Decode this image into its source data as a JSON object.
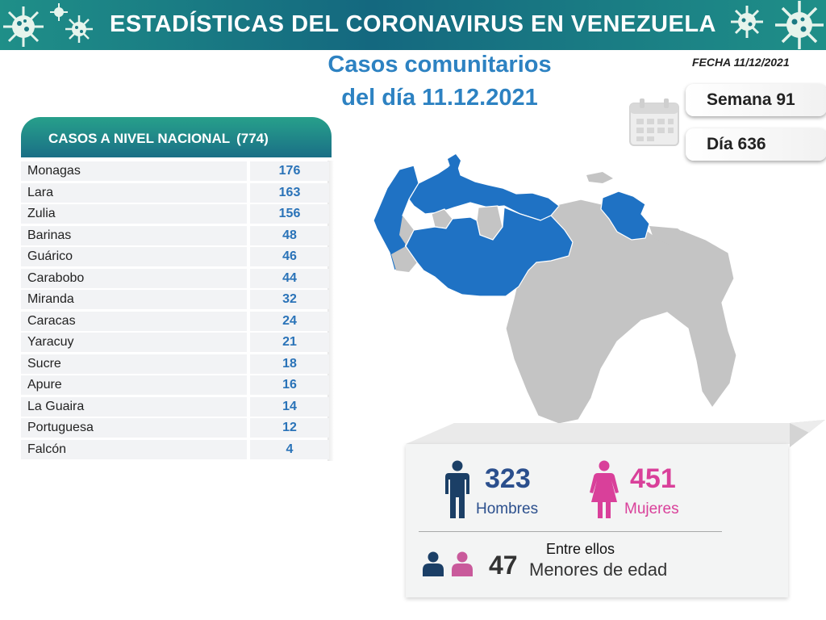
{
  "header": {
    "title": "ESTADÍSTICAS DEL CORONAVIRUS EN VENEZUELA"
  },
  "subtitle": {
    "line1": "Casos comunitarios",
    "line2": "del día 11.12.2021"
  },
  "fecha": "FECHA 11/12/2021",
  "semana": "Semana 91",
  "dia": "Día 636",
  "table": {
    "title": "CASOS A NIVEL NACIONAL",
    "total": "(774)",
    "rows": [
      {
        "name": "Monagas",
        "value": "176"
      },
      {
        "name": "Lara",
        "value": "163"
      },
      {
        "name": "Zulia",
        "value": "156"
      },
      {
        "name": "Barinas",
        "value": "48"
      },
      {
        "name": "Guárico",
        "value": "46"
      },
      {
        "name": "Carabobo",
        "value": "44"
      },
      {
        "name": "Miranda",
        "value": "32"
      },
      {
        "name": "Caracas",
        "value": "24"
      },
      {
        "name": "Yaracuy",
        "value": "21"
      },
      {
        "name": "Sucre",
        "value": "18"
      },
      {
        "name": "Apure",
        "value": "16"
      },
      {
        "name": "La Guaira",
        "value": "14"
      },
      {
        "name": "Portuguesa",
        "value": "12"
      },
      {
        "name": "Falcón",
        "value": "4"
      }
    ]
  },
  "stats": {
    "hombres_value": "323",
    "hombres_label": "Hombres",
    "mujeres_value": "451",
    "mujeres_label": "Mujeres",
    "entre_ellos": "Entre ellos",
    "menores_value": "47",
    "menores_label": "Menores de edad"
  },
  "colors": {
    "banner": "#1a6f86",
    "accent_blue": "#2d82c2",
    "male": "#1b3f66",
    "female": "#d9409a",
    "map_affected": "#1f72c4",
    "map_other": "#c4c4c4"
  }
}
